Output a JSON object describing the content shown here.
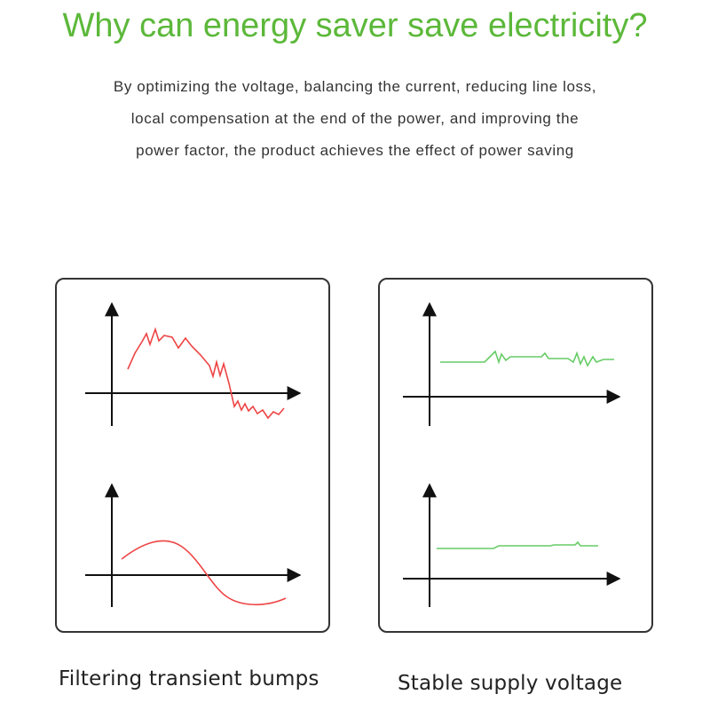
{
  "title": "Why can energy saver save electricity?",
  "description": [
    "By optimizing the voltage, balancing the current, reducing line loss,",
    "local compensation at the end of the power, and improving the",
    "power factor, the product achieves the effect of power saving"
  ],
  "colors": {
    "title": "#5cb83a",
    "before_wave": "#ee4444",
    "after_wave": "#66cc66",
    "axis": "#111111",
    "frame": "#333333"
  },
  "panels": [
    {
      "caption": "Filtering transient bumps"
    },
    {
      "caption": "Stable supply voltage"
    }
  ]
}
